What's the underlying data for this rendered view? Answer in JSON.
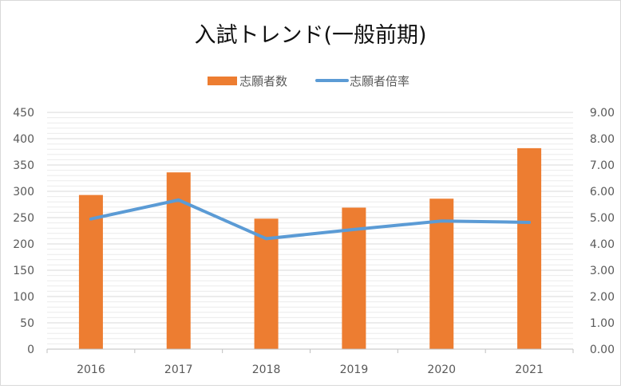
{
  "chart_data": {
    "type": "bar",
    "title": "入試トレンド(一般前期)",
    "categories": [
      "2016",
      "2017",
      "2018",
      "2019",
      "2020",
      "2021"
    ],
    "series": [
      {
        "name": "志願者数",
        "kind": "bar",
        "axis": "left",
        "color": "#ed7d31",
        "values": [
          293,
          336,
          248,
          269,
          286,
          382
        ]
      },
      {
        "name": "志願者倍率",
        "kind": "line",
        "axis": "right",
        "color": "#5b9bd5",
        "values": [
          4.95,
          5.67,
          4.2,
          4.55,
          4.87,
          4.82
        ]
      }
    ],
    "y_left": {
      "ylim": [
        0,
        450
      ],
      "ticks": [
        "0",
        "50",
        "100",
        "150",
        "200",
        "250",
        "300",
        "350",
        "400",
        "450"
      ]
    },
    "y_right": {
      "ylim": [
        0,
        9
      ],
      "ticks": [
        "0.00",
        "1.00",
        "2.00",
        "3.00",
        "4.00",
        "5.00",
        "6.00",
        "7.00",
        "8.00",
        "9.00"
      ]
    },
    "grid": true,
    "legend_position": "top"
  }
}
